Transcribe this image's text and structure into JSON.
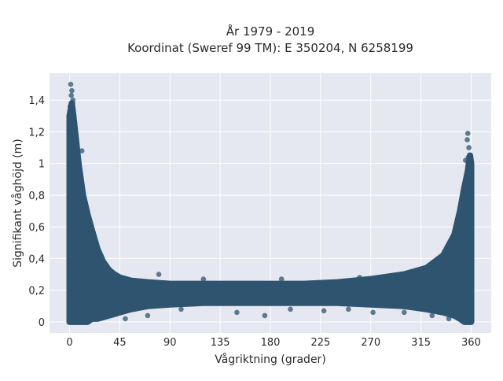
{
  "chart_data": {
    "type": "scatter",
    "title_line1": "År 1979 - 2019",
    "title_line2": "Koordinat (Sweref 99 TM): E 350204, N 6258199",
    "xlabel": "Vågriktning (grader)",
    "ylabel": "Signifikant våghöjd (m)",
    "xlim": [
      -18,
      378
    ],
    "ylim": [
      -0.07,
      1.57
    ],
    "x_ticks": [
      0,
      45,
      90,
      135,
      180,
      225,
      270,
      315,
      360
    ],
    "x_tick_labels": [
      "0",
      "45",
      "90",
      "135",
      "180",
      "225",
      "270",
      "315",
      "360"
    ],
    "y_ticks": [
      0,
      0.2,
      0.4,
      0.6,
      0.8,
      1.0,
      1.2,
      1.4
    ],
    "y_tick_labels": [
      "0",
      "0,2",
      "0,4",
      "0,6",
      "0,8",
      "1",
      "1,2",
      "1,4"
    ],
    "grid": true,
    "marker_color": "#2f5470",
    "plot_bg": "#e5e8f0",
    "envelope": {
      "x": [
        0,
        2,
        5,
        8,
        12,
        16,
        20,
        25,
        30,
        35,
        40,
        45,
        55,
        70,
        90,
        120,
        150,
        180,
        210,
        240,
        270,
        300,
        320,
        335,
        345,
        350,
        354,
        357,
        359,
        360
      ],
      "y_max": [
        1.3,
        1.38,
        1.2,
        1.0,
        0.8,
        0.68,
        0.58,
        0.46,
        0.38,
        0.33,
        0.3,
        0.28,
        0.26,
        0.25,
        0.24,
        0.24,
        0.24,
        0.24,
        0.24,
        0.25,
        0.27,
        0.3,
        0.34,
        0.42,
        0.55,
        0.7,
        0.85,
        0.95,
        1.05,
        1.0
      ],
      "y_min": [
        0.0,
        0.0,
        0.0,
        0.0,
        0.0,
        0.0,
        0.02,
        0.02,
        0.03,
        0.04,
        0.05,
        0.06,
        0.08,
        0.1,
        0.11,
        0.12,
        0.12,
        0.12,
        0.12,
        0.12,
        0.11,
        0.1,
        0.08,
        0.06,
        0.04,
        0.02,
        0.0,
        0.0,
        0.0,
        0.0
      ]
    },
    "points": [
      {
        "x": 1,
        "y": 1.5
      },
      {
        "x": 2,
        "y": 1.46
      },
      {
        "x": 1.5,
        "y": 1.43
      },
      {
        "x": 3,
        "y": 1.4
      },
      {
        "x": 0.5,
        "y": 1.36
      },
      {
        "x": 4,
        "y": 1.3
      },
      {
        "x": 2.5,
        "y": 1.25
      },
      {
        "x": 5,
        "y": 1.22
      },
      {
        "x": 11,
        "y": 1.08
      },
      {
        "x": 7,
        "y": 1.02
      },
      {
        "x": 357,
        "y": 1.19
      },
      {
        "x": 356.5,
        "y": 1.15
      },
      {
        "x": 358,
        "y": 1.1
      },
      {
        "x": 355,
        "y": 1.02
      },
      {
        "x": 357.5,
        "y": 1.04
      },
      {
        "x": 50,
        "y": 0.02
      },
      {
        "x": 70,
        "y": 0.04
      },
      {
        "x": 100,
        "y": 0.08
      },
      {
        "x": 150,
        "y": 0.06
      },
      {
        "x": 175,
        "y": 0.04
      },
      {
        "x": 198,
        "y": 0.08
      },
      {
        "x": 228,
        "y": 0.07
      },
      {
        "x": 250,
        "y": 0.08
      },
      {
        "x": 272,
        "y": 0.06
      },
      {
        "x": 300,
        "y": 0.06
      },
      {
        "x": 325,
        "y": 0.04
      },
      {
        "x": 340,
        "y": 0.02
      },
      {
        "x": 80,
        "y": 0.3
      },
      {
        "x": 120,
        "y": 0.27
      },
      {
        "x": 190,
        "y": 0.27
      },
      {
        "x": 260,
        "y": 0.28
      },
      {
        "x": 310,
        "y": 0.31
      },
      {
        "x": 335,
        "y": 0.34
      },
      {
        "x": 338,
        "y": 0.45
      }
    ]
  }
}
